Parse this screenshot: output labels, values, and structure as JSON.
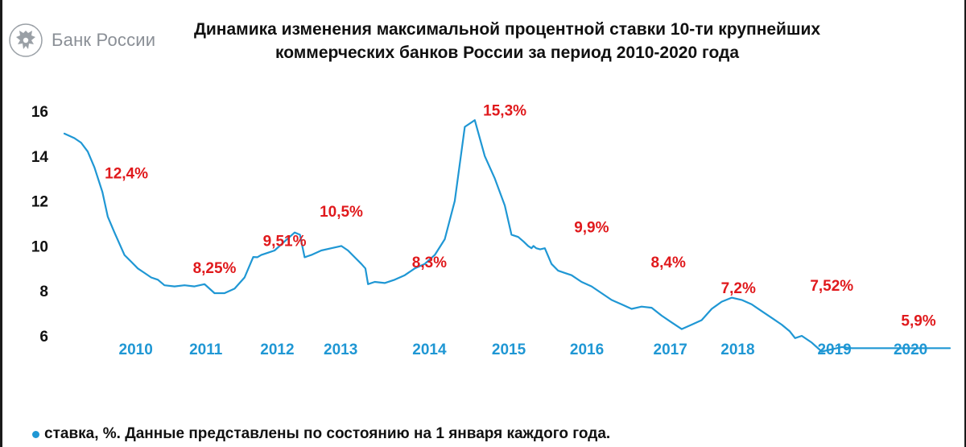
{
  "logo": {
    "text": "Банк России",
    "icon": "double-headed-eagle-icon"
  },
  "title": {
    "line1": "Динамика изменения максимальной процентной ставки 10-ти крупнейших",
    "line2": "коммерческих банков России за период 2010-2020 года"
  },
  "footnote": {
    "text": "ставка, %. Данные представлены по состоянию на 1 января каждого года."
  },
  "colors": {
    "line": "#1f97d4",
    "annotation": "#e0191c",
    "year_label": "#1f97d4",
    "axis_text": "#111111"
  },
  "chart_data": {
    "type": "line",
    "grid": false,
    "ylim": [
      5.3,
      16.3
    ],
    "yticks": [
      6,
      8,
      10,
      12,
      14,
      16
    ],
    "x_year_labels": [
      "2010",
      "2011",
      "2012",
      "2013",
      "2014",
      "2015",
      "2016",
      "2017",
      "2018",
      "2019",
      "2020"
    ],
    "x_year_positions": [
      2009.92,
      2010.97,
      2012.04,
      2012.99,
      2014.32,
      2015.51,
      2016.68,
      2017.93,
      2018.94,
      2020.39,
      2021.53
    ],
    "series": [
      {
        "x": [
          2008.85,
          2009.0,
          2009.1,
          2009.2,
          2009.3,
          2009.42,
          2009.5,
          2009.6,
          2009.75,
          2009.85,
          2009.95,
          2010.05,
          2010.15,
          2010.25,
          2010.35,
          2010.5,
          2010.65,
          2010.8,
          2010.95,
          2011.1,
          2011.25,
          2011.4,
          2011.55,
          2011.68,
          2011.74,
          2011.8,
          2011.9,
          2012.0,
          2012.15,
          2012.3,
          2012.38,
          2012.45,
          2012.55,
          2012.7,
          2012.85,
          2013.0,
          2013.1,
          2013.2,
          2013.3,
          2013.36,
          2013.4,
          2013.5,
          2013.65,
          2013.8,
          2013.95,
          2014.1,
          2014.25,
          2014.4,
          2014.55,
          2014.7,
          2014.85,
          2015.0,
          2015.15,
          2015.3,
          2015.45,
          2015.55,
          2015.65,
          2015.73,
          2015.8,
          2015.85,
          2015.88,
          2015.92,
          2015.98,
          2016.05,
          2016.15,
          2016.25,
          2016.35,
          2016.45,
          2016.6,
          2016.75,
          2016.9,
          2017.05,
          2017.2,
          2017.35,
          2017.5,
          2017.65,
          2017.8,
          2017.95,
          2018.1,
          2018.25,
          2018.4,
          2018.55,
          2018.7,
          2018.85,
          2019.0,
          2019.15,
          2019.3,
          2019.45,
          2019.6,
          2019.72,
          2019.8,
          2019.9,
          2020.05,
          2020.2,
          2020.35,
          2020.5,
          2020.65,
          2020.8,
          2020.95,
          2021.1,
          2021.25,
          2021.4,
          2021.55,
          2021.65,
          2021.75,
          2021.85,
          2021.95,
          2022.05,
          2022.12
        ],
        "y": [
          15.0,
          14.8,
          14.6,
          14.2,
          13.5,
          12.4,
          11.3,
          10.6,
          9.6,
          9.3,
          9.0,
          8.8,
          8.6,
          8.5,
          8.25,
          8.2,
          8.25,
          8.2,
          8.3,
          7.9,
          7.9,
          8.1,
          8.6,
          9.51,
          9.5,
          9.6,
          9.7,
          9.8,
          10.2,
          10.6,
          10.5,
          9.5,
          9.6,
          9.8,
          9.9,
          10.0,
          9.8,
          9.5,
          9.2,
          9.0,
          8.3,
          8.4,
          8.35,
          8.5,
          8.7,
          9.0,
          9.2,
          9.6,
          10.3,
          12.0,
          15.3,
          15.6,
          14.0,
          13.0,
          11.8,
          10.5,
          10.4,
          10.2,
          10.0,
          9.9,
          10.0,
          9.9,
          9.85,
          9.9,
          9.2,
          8.9,
          8.8,
          8.7,
          8.4,
          8.2,
          7.9,
          7.6,
          7.4,
          7.2,
          7.3,
          7.25,
          6.9,
          6.6,
          6.3,
          6.5,
          6.7,
          7.2,
          7.52,
          7.7,
          7.6,
          7.4,
          7.1,
          6.8,
          6.5,
          6.2,
          5.9,
          6.0,
          5.7,
          5.3,
          5.4,
          5.5,
          5.45,
          5.45,
          5.45,
          5.45,
          5.45,
          5.45,
          5.45,
          5.45,
          5.45,
          5.45,
          5.45,
          5.45,
          5.45
        ],
        "color": "#1f97d4"
      }
    ],
    "annotations": [
      {
        "label": "12,4%",
        "x": 2009.78,
        "y": 13.0
      },
      {
        "label": "8,25%",
        "x": 2011.1,
        "y": 8.8
      },
      {
        "label": "9,51%",
        "x": 2012.15,
        "y": 10.0
      },
      {
        "label": "10,5%",
        "x": 2013.0,
        "y": 11.3
      },
      {
        "label": "8,3%",
        "x": 2014.32,
        "y": 9.05
      },
      {
        "label": "15,3%",
        "x": 2015.45,
        "y": 15.8
      },
      {
        "label": "9,9%",
        "x": 2016.75,
        "y": 10.6
      },
      {
        "label": "8,4%",
        "x": 2017.9,
        "y": 9.05
      },
      {
        "label": "7,2%",
        "x": 2018.95,
        "y": 7.9
      },
      {
        "label": "7,52%",
        "x": 2020.35,
        "y": 8.0
      },
      {
        "label": "5,9%",
        "x": 2021.65,
        "y": 6.45
      }
    ]
  }
}
